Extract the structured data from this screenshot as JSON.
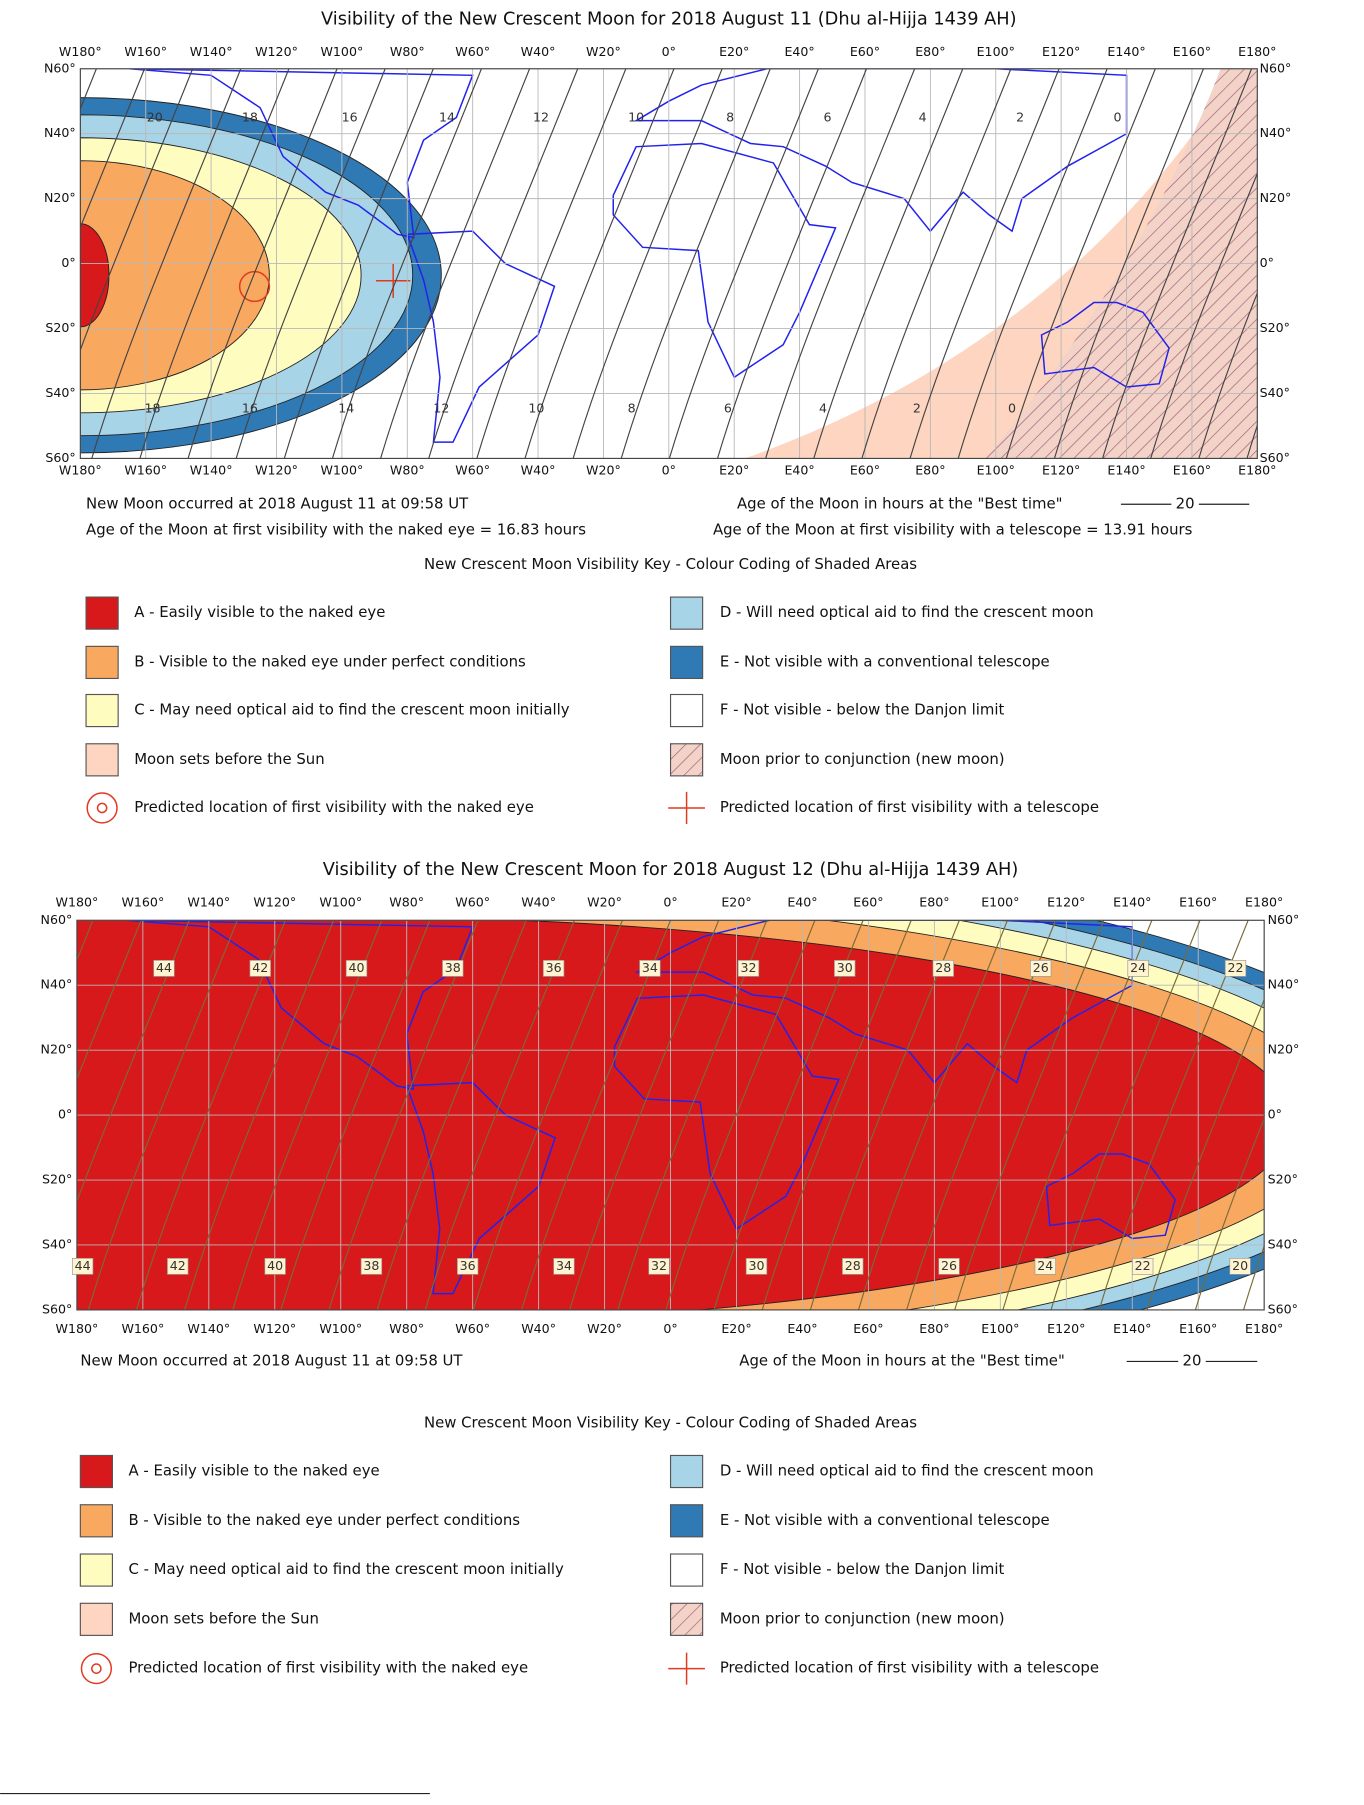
{
  "maps": [
    {
      "title": "Visibility of the New Crescent Moon for 2018 August 11 (Dhu al-Hijja 1439 AH)",
      "lon_labels": [
        "W180°",
        "W160°",
        "W140°",
        "W120°",
        "W100°",
        "W80°",
        "W60°",
        "W40°",
        "W20°",
        "0°",
        "E20°",
        "E40°",
        "E60°",
        "E80°",
        "E100°",
        "E120°",
        "E140°",
        "E160°",
        "E180°"
      ],
      "lat_labels": [
        "N60°",
        "N40°",
        "N20°",
        "0°",
        "S20°",
        "S40°",
        "S60°"
      ],
      "hours_top": [
        "20",
        "18",
        "16",
        "14",
        "12",
        "10",
        "8",
        "6",
        "4",
        "2",
        "0"
      ],
      "hours_bottom": [
        "18",
        "16",
        "14",
        "12",
        "10",
        "8",
        "6",
        "4",
        "2",
        "0"
      ],
      "notes_left": [
        "New Moon occurred at 2018 August 11 at 09:58 UT",
        "Age of the Moon at first visibility with the naked eye = 16.83 hours"
      ],
      "notes_right": [
        "Age of the Moon in hours at the \"Best time\"",
        "Age of the Moon at first visibility with a telescope = 13.91 hours"
      ],
      "legend_value": "20",
      "key": {
        "title": "New Crescent Moon Visibility Key - Colour Coding of Shaded Areas",
        "left": [
          "A - Easily visible to the naked eye",
          "B - Visible to the naked eye under perfect conditions",
          "C - May need optical aid to find the crescent moon initially",
          "Moon sets before the Sun",
          "Predicted location of first visibility with the naked eye"
        ],
        "right": [
          "D - Will need optical aid to find the crescent moon",
          "E - Not visible with a conventional telescope",
          "F - Not visible - below the Danjon limit",
          "Moon prior to conjunction (new moon)",
          "Predicted location of first visibility with a telescope"
        ]
      }
    },
    {
      "title": "Visibility of the New Crescent Moon for 2018 August 12 (Dhu al-Hijja 1439 AH)",
      "lon_labels": [
        "W180°",
        "W160°",
        "W140°",
        "W120°",
        "W100°",
        "W80°",
        "W60°",
        "W40°",
        "W20°",
        "0°",
        "E20°",
        "E40°",
        "E60°",
        "E80°",
        "E100°",
        "E120°",
        "E140°",
        "E160°",
        "E180°"
      ],
      "lat_labels": [
        "N60°",
        "N40°",
        "N20°",
        "0°",
        "S20°",
        "S40°",
        "S60°"
      ],
      "hours_top": [
        "44",
        "42",
        "40",
        "38",
        "36",
        "34",
        "32",
        "30",
        "28",
        "26",
        "24",
        "22"
      ],
      "hours_bottom": [
        "44",
        "42",
        "40",
        "38",
        "36",
        "34",
        "32",
        "30",
        "28",
        "26",
        "24",
        "22",
        "20"
      ],
      "notes_left": [
        "New Moon occurred at 2018 August 11 at 09:58 UT"
      ],
      "notes_right": [
        "Age of the Moon in hours at the \"Best time\""
      ],
      "legend_value": "20",
      "key": {
        "title": "New Crescent Moon Visibility Key - Colour Coding of Shaded Areas",
        "left": [
          "A - Easily visible to the naked eye",
          "B - Visible to the naked eye under perfect conditions",
          "C - May need optical aid to find the crescent moon initially",
          "Moon sets before the Sun",
          "Predicted location of first visibility with the naked eye"
        ],
        "right": [
          "D - Will need optical aid to find the crescent moon",
          "E - Not visible with a conventional telescope",
          "F - Not visible - below the Danjon limit",
          "Moon prior to conjunction (new moon)",
          "Predicted location of first visibility with a telescope"
        ]
      }
    }
  ]
}
